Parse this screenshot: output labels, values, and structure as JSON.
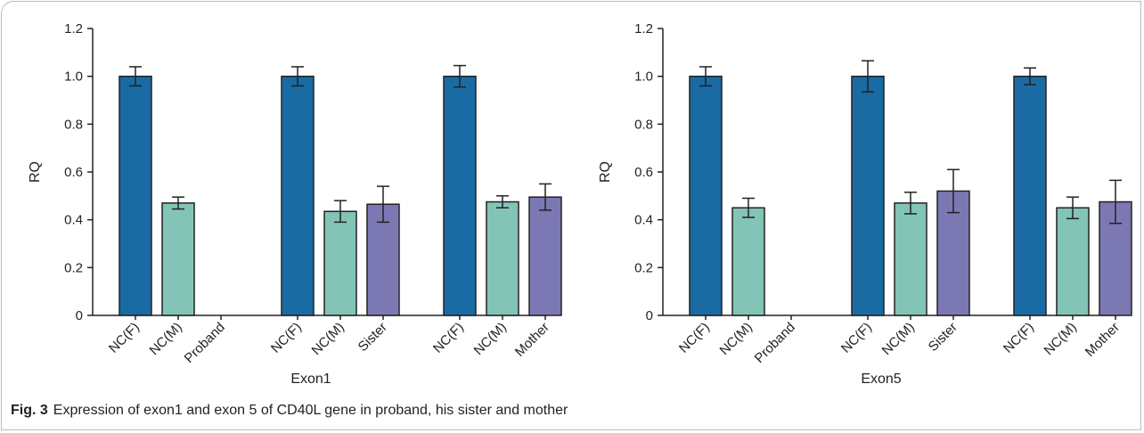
{
  "figure": {
    "label": "Fig. 3",
    "caption": "Expression of exon1 and exon 5 of CD40L gene in proband, his sister and mother"
  },
  "colors": {
    "NC(F)": "#1a6aa4",
    "NC(M)": "#82c4b6",
    "relative": "#7c78b4"
  },
  "chart_data": [
    {
      "type": "bar",
      "title": "",
      "xlabel": "Exon1",
      "ylabel": "RQ",
      "ylim": [
        0,
        1.2
      ],
      "yticks": [
        "0",
        "0.2",
        "0.4",
        "0.6",
        "0.8",
        "1.0",
        "1.2"
      ],
      "grid": false,
      "groups": [
        {
          "bars": [
            {
              "label": "NC(F)",
              "value": 1.0,
              "err": 0.04,
              "color_key": "NC(F)"
            },
            {
              "label": "NC(M)",
              "value": 0.47,
              "err": 0.025,
              "color_key": "NC(M)"
            },
            {
              "label": "Proband",
              "value": 0.0,
              "err": 0,
              "color_key": "relative"
            }
          ]
        },
        {
          "bars": [
            {
              "label": "NC(F)",
              "value": 1.0,
              "err": 0.04,
              "color_key": "NC(F)"
            },
            {
              "label": "NC(M)",
              "value": 0.435,
              "err": 0.045,
              "color_key": "NC(M)"
            },
            {
              "label": "Sister",
              "value": 0.465,
              "err": 0.075,
              "color_key": "relative"
            }
          ]
        },
        {
          "bars": [
            {
              "label": "NC(F)",
              "value": 1.0,
              "err": 0.045,
              "color_key": "NC(F)"
            },
            {
              "label": "NC(M)",
              "value": 0.475,
              "err": 0.025,
              "color_key": "NC(M)"
            },
            {
              "label": "Mother",
              "value": 0.495,
              "err": 0.055,
              "color_key": "relative"
            }
          ]
        }
      ]
    },
    {
      "type": "bar",
      "title": "",
      "xlabel": "Exon5",
      "ylabel": "RQ",
      "ylim": [
        0,
        1.2
      ],
      "yticks": [
        "0",
        "0.2",
        "0.4",
        "0.6",
        "0.8",
        "1.0",
        "1.2"
      ],
      "grid": false,
      "groups": [
        {
          "bars": [
            {
              "label": "NC(F)",
              "value": 1.0,
              "err": 0.04,
              "color_key": "NC(F)"
            },
            {
              "label": "NC(M)",
              "value": 0.45,
              "err": 0.04,
              "color_key": "NC(M)"
            },
            {
              "label": "Proband",
              "value": 0.0,
              "err": 0,
              "color_key": "relative"
            }
          ]
        },
        {
          "bars": [
            {
              "label": "NC(F)",
              "value": 1.0,
              "err": 0.065,
              "color_key": "NC(F)"
            },
            {
              "label": "NC(M)",
              "value": 0.47,
              "err": 0.045,
              "color_key": "NC(M)"
            },
            {
              "label": "Sister",
              "value": 0.52,
              "err": 0.09,
              "color_key": "relative"
            }
          ]
        },
        {
          "bars": [
            {
              "label": "NC(F)",
              "value": 1.0,
              "err": 0.035,
              "color_key": "NC(F)"
            },
            {
              "label": "NC(M)",
              "value": 0.45,
              "err": 0.045,
              "color_key": "NC(M)"
            },
            {
              "label": "Mother",
              "value": 0.475,
              "err": 0.09,
              "color_key": "relative"
            }
          ]
        }
      ]
    }
  ]
}
